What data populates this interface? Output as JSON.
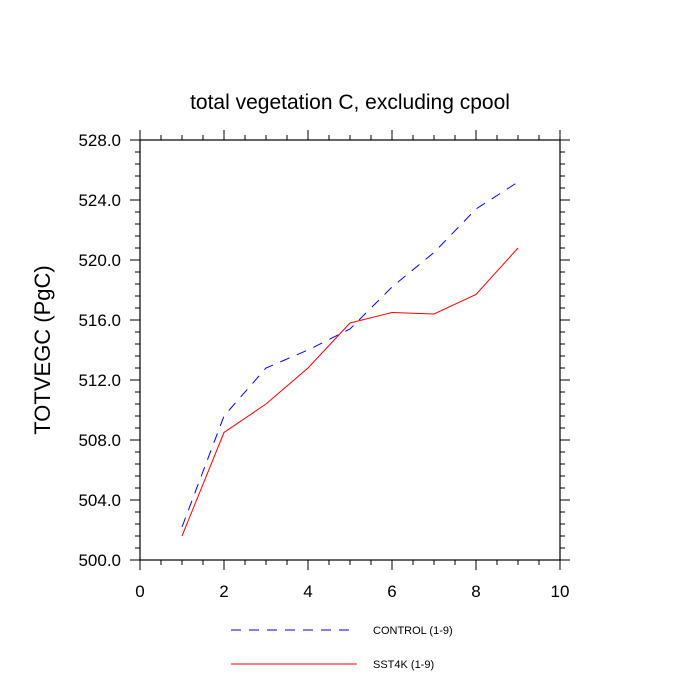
{
  "chart_data": {
    "type": "line",
    "title": "total vegetation C, excluding cpool",
    "xlabel": "",
    "ylabel": "TOTVEGC  (PgC)",
    "xlim": [
      0,
      10
    ],
    "ylim": [
      500,
      528
    ],
    "xticks": [
      0,
      2,
      4,
      6,
      8,
      10
    ],
    "xtick_labels": [
      "0",
      "2",
      "4",
      "6",
      "8",
      "10"
    ],
    "yticks": [
      500,
      504,
      508,
      512,
      516,
      520,
      524,
      528
    ],
    "ytick_labels": [
      "500.0",
      "504.0",
      "508.0",
      "512.0",
      "516.0",
      "520.0",
      "524.0",
      "528.0"
    ],
    "grid": false,
    "legend_position": "bottom",
    "series": [
      {
        "name": "CONTROL (1-9)",
        "color": "#0000ff",
        "style": "dashed",
        "x": [
          1,
          2,
          3,
          4,
          5,
          6,
          7,
          8,
          9
        ],
        "values": [
          502.2,
          509.6,
          512.8,
          514.0,
          515.4,
          518.2,
          520.5,
          523.4,
          525.2
        ]
      },
      {
        "name": "SST4K (1-9)",
        "color": "#ff0000",
        "style": "solid",
        "x": [
          1,
          2,
          3,
          4,
          5,
          6,
          7,
          8,
          9
        ],
        "values": [
          501.6,
          508.5,
          510.4,
          512.8,
          515.8,
          516.5,
          516.4,
          517.7,
          520.8
        ]
      }
    ]
  }
}
